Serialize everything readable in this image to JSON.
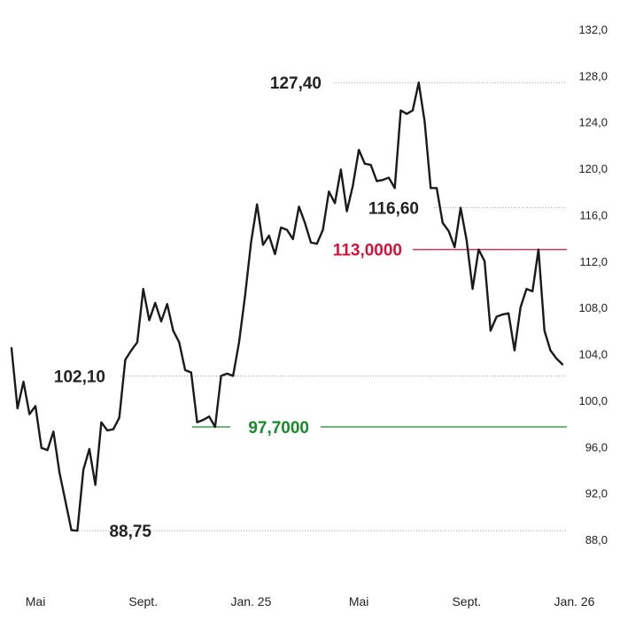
{
  "chart_data": {
    "type": "line",
    "ylim": [
      86.0,
      132.5
    ],
    "y_ticks": [
      {
        "value": 132.0,
        "label": "132,0"
      },
      {
        "value": 128.0,
        "label": "128,0"
      },
      {
        "value": 124.0,
        "label": "124,0"
      },
      {
        "value": 120.0,
        "label": "120,0"
      },
      {
        "value": 116.0,
        "label": "116,0"
      },
      {
        "value": 112.0,
        "label": "112,0"
      },
      {
        "value": 108.0,
        "label": "108,0"
      },
      {
        "value": 104.0,
        "label": "104,0"
      },
      {
        "value": 100.0,
        "label": "100,0"
      },
      {
        "value": 96.0,
        "label": "96,0"
      },
      {
        "value": 92.0,
        "label": "92,0"
      },
      {
        "value": 88.0,
        "label": "88,0"
      }
    ],
    "x_ticks": [
      {
        "index": 4,
        "label": "Mai"
      },
      {
        "index": 22,
        "label": "Sept."
      },
      {
        "index": 40,
        "label": "Jan. 25"
      },
      {
        "index": 58,
        "label": "Mai"
      },
      {
        "index": 76,
        "label": "Sept."
      },
      {
        "index": 94,
        "label": "Jan. 26"
      }
    ],
    "series": [
      {
        "color": "#1a1a1a",
        "values": [
          104.5,
          99.3,
          101.6,
          98.8,
          99.5,
          95.9,
          95.7,
          97.3,
          93.8,
          91.3,
          88.8,
          88.75,
          94.0,
          95.8,
          92.7,
          98.1,
          97.4,
          97.5,
          98.5,
          103.5,
          104.3,
          105.0,
          109.6,
          106.9,
          108.4,
          106.8,
          108.3,
          106.0,
          105.0,
          102.6,
          102.4,
          98.1,
          98.3,
          98.6,
          97.7,
          102.1,
          102.3,
          102.1,
          105.0,
          109.0,
          113.6,
          116.9,
          113.4,
          114.2,
          112.6,
          114.9,
          114.7,
          113.9,
          116.7,
          115.3,
          113.6,
          113.5,
          114.7,
          118.0,
          117.0,
          119.9,
          116.3,
          118.5,
          121.6,
          120.4,
          120.3,
          118.9,
          119.0,
          119.2,
          118.3,
          125.0,
          124.7,
          125.0,
          127.4,
          124.0,
          118.3,
          118.3,
          115.3,
          114.6,
          113.2,
          116.6,
          113.8,
          109.6,
          113.0,
          112.0,
          106.0,
          107.2,
          107.4,
          107.5,
          104.3,
          108.0,
          109.6,
          109.4,
          113.0,
          106.0,
          104.3,
          103.6,
          103.1
        ]
      }
    ],
    "annotations": [
      {
        "label": "127,40",
        "value": 127.4
      },
      {
        "label": "116,60",
        "value": 116.6
      },
      {
        "label": "102,10",
        "value": 102.1
      },
      {
        "label": "88,75",
        "value": 88.75
      }
    ],
    "reference_lines": [
      {
        "label": "113,0000",
        "value": 113.0,
        "color": "#d6123a"
      },
      {
        "label": "97,7000",
        "value": 97.7,
        "color": "#178a2b"
      }
    ],
    "grid": true
  }
}
